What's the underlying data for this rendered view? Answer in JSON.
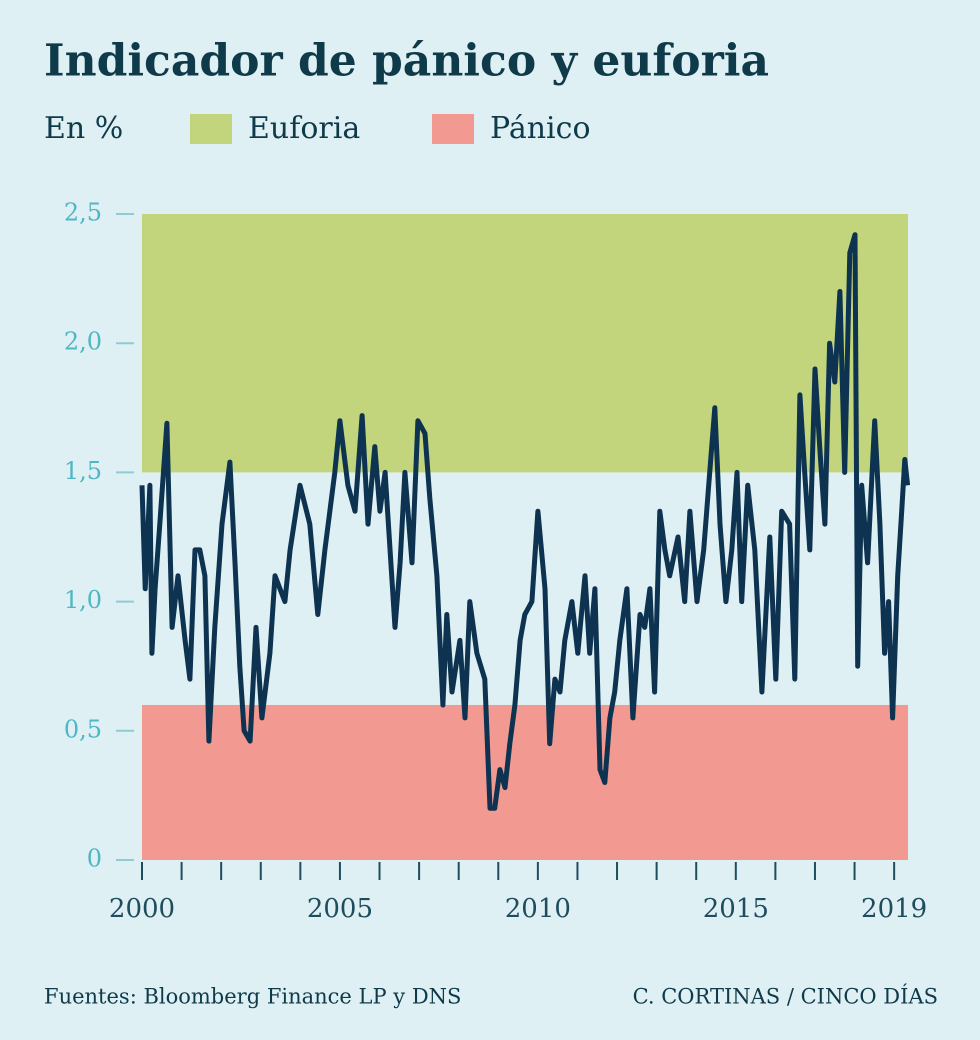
{
  "chart_data": {
    "type": "line",
    "title": "Indicador de pánico y euforia",
    "subtitle": "En %",
    "source": "Fuentes: Bloomberg Finance LP y DNS",
    "credit": "C. CORTINAS / CINCO DÍAS",
    "bands": [
      {
        "name": "Euforia",
        "color": "#c3d57c",
        "from": 1.5,
        "to": 2.5
      },
      {
        "name": "Pánico",
        "color": "#f29a91",
        "from": 0,
        "to": 0.6
      }
    ],
    "color": "#0d3350",
    "x": [
      2000.0,
      2000.08,
      2000.2,
      2000.25,
      2000.33,
      2000.45,
      2000.63,
      2000.76,
      2000.91,
      2001.09,
      2001.21,
      2001.34,
      2001.46,
      2001.59,
      2001.69,
      2001.84,
      2002.02,
      2002.22,
      2002.35,
      2002.47,
      2002.58,
      2002.73,
      2002.88,
      2003.03,
      2003.23,
      2003.36,
      2003.61,
      2003.74,
      2003.99,
      2004.24,
      2004.44,
      2004.62,
      2004.87,
      2005.0,
      2005.2,
      2005.38,
      2005.56,
      2005.71,
      2005.88,
      2006.01,
      2006.14,
      2006.39,
      2006.52,
      2006.64,
      2006.82,
      2006.97,
      2007.15,
      2007.27,
      2007.45,
      2007.6,
      2007.7,
      2007.83,
      2008.03,
      2008.16,
      2008.28,
      2008.46,
      2008.66,
      2008.79,
      2008.91,
      2009.04,
      2009.17,
      2009.29,
      2009.42,
      2009.55,
      2009.67,
      2009.85,
      2010.0,
      2010.18,
      2010.3,
      2010.43,
      2010.56,
      2010.68,
      2010.86,
      2011.01,
      2011.19,
      2011.31,
      2011.44,
      2011.57,
      2011.69,
      2011.82,
      2011.94,
      2012.07,
      2012.25,
      2012.4,
      2012.58,
      2012.7,
      2012.83,
      2012.95,
      2013.08,
      2013.21,
      2013.33,
      2013.54,
      2013.71,
      2013.84,
      2014.02,
      2014.19,
      2014.34,
      2014.47,
      2014.6,
      2014.75,
      2014.9,
      2015.03,
      2015.15,
      2015.3,
      2015.48,
      2015.66,
      2015.86,
      2016.01,
      2016.16,
      2016.36,
      2016.49,
      2016.62,
      2016.74,
      2016.87,
      2017.0,
      2017.12,
      2017.25,
      2017.37,
      2017.5,
      2017.63,
      2017.75,
      2017.88,
      2018.01,
      2018.08,
      2018.18,
      2018.33,
      2018.51,
      2018.64,
      2018.76,
      2018.86,
      2018.96,
      2019.09,
      2019.19,
      2019.27,
      2019.34
    ],
    "values": [
      1.45,
      1.05,
      1.45,
      0.8,
      1.05,
      1.3,
      1.69,
      0.9,
      1.1,
      0.85,
      0.7,
      1.2,
      1.2,
      1.1,
      0.46,
      0.9,
      1.3,
      1.54,
      1.15,
      0.75,
      0.5,
      0.46,
      0.9,
      0.55,
      0.8,
      1.1,
      1.0,
      1.2,
      1.45,
      1.3,
      0.95,
      1.2,
      1.5,
      1.7,
      1.45,
      1.35,
      1.72,
      1.3,
      1.6,
      1.35,
      1.5,
      0.9,
      1.15,
      1.5,
      1.15,
      1.7,
      1.65,
      1.4,
      1.1,
      0.6,
      0.95,
      0.65,
      0.85,
      0.55,
      1.0,
      0.8,
      0.7,
      0.2,
      0.2,
      0.35,
      0.28,
      0.45,
      0.6,
      0.85,
      0.95,
      1.0,
      1.35,
      1.05,
      0.45,
      0.7,
      0.65,
      0.85,
      1.0,
      0.8,
      1.1,
      0.8,
      1.05,
      0.35,
      0.3,
      0.55,
      0.65,
      0.85,
      1.05,
      0.55,
      0.95,
      0.9,
      1.05,
      0.65,
      1.35,
      1.2,
      1.1,
      1.25,
      1.0,
      1.35,
      1.0,
      1.2,
      1.5,
      1.75,
      1.3,
      1.0,
      1.2,
      1.5,
      1.0,
      1.45,
      1.2,
      0.65,
      1.25,
      0.7,
      1.35,
      1.3,
      0.7,
      1.8,
      1.5,
      1.2,
      1.9,
      1.6,
      1.3,
      2.0,
      1.85,
      2.2,
      1.5,
      2.35,
      2.42,
      0.75,
      1.45,
      1.15,
      1.7,
      1.3,
      0.8,
      1.0,
      0.55,
      1.1,
      1.35,
      1.55,
      1.45
    ],
    "xlim": [
      2000,
      2019.35
    ],
    "xticks": [
      2000,
      2005,
      2010,
      2015,
      2019
    ],
    "xminor_ticks": [
      2000,
      2001,
      2002,
      2003,
      2004,
      2005,
      2006,
      2007,
      2008,
      2009,
      2010,
      2011,
      2012,
      2013,
      2014,
      2015,
      2016,
      2017,
      2018,
      2019
    ],
    "ylim": [
      0,
      2.5
    ],
    "yticks": [
      0,
      {
        "value": 0.5,
        "label": "0,5"
      },
      {
        "value": 1,
        "label": "1,0"
      },
      {
        "value": 1.5,
        "label": "1,5"
      },
      {
        "value": 2,
        "label": "2,0"
      },
      {
        "value": 2.5,
        "label": "2,5"
      }
    ]
  }
}
